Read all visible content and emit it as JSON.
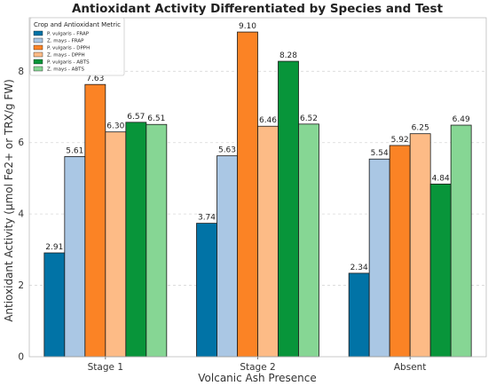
{
  "chart_data": {
    "type": "bar",
    "title": "Antioxidant Activity Differentiated by Species and Test",
    "xlabel": "Volcanic Ash Presence",
    "ylabel": "Antioxidant Activity (μmol Fe2+ or TRX/g FW)",
    "ylim": [
      0,
      9.5
    ],
    "yticks": [
      0,
      2,
      4,
      6,
      8
    ],
    "grid": true,
    "categories": [
      "Stage 1",
      "Stage 2",
      "Absent"
    ],
    "legend": {
      "title": "Crop and Antioxidant Metric",
      "placement": "top-left"
    },
    "series": [
      {
        "name": "P. vulgaris - FRAP",
        "color": "#0173a6",
        "values": [
          2.91,
          3.74,
          2.34
        ],
        "labels": [
          "2.91",
          "3.74",
          "2.34"
        ]
      },
      {
        "name": "Z. mays - FRAP",
        "color": "#aac7e4",
        "values": [
          5.61,
          5.63,
          5.54
        ],
        "labels": [
          "5.61",
          "5.63",
          "5.54"
        ]
      },
      {
        "name": "P. vulgaris - DPPH",
        "color": "#fb8325",
        "values": [
          7.63,
          9.1,
          5.92
        ],
        "labels": [
          "7.63",
          "9.10",
          "5.92"
        ]
      },
      {
        "name": "Z. mays - DPPH",
        "color": "#fdbb86",
        "values": [
          6.3,
          6.46,
          6.25
        ],
        "labels": [
          "6.30",
          "6.46",
          "6.25"
        ]
      },
      {
        "name": "P. vulgaris - ABTS",
        "color": "#08953a",
        "values": [
          6.57,
          8.28,
          4.84
        ],
        "labels": [
          "6.57",
          "8.28",
          "4.84"
        ]
      },
      {
        "name": "Z. mays - ABTS",
        "color": "#86d694",
        "values": [
          6.51,
          6.52,
          6.49
        ],
        "labels": [
          "6.51",
          "6.52",
          "6.49"
        ]
      }
    ]
  }
}
